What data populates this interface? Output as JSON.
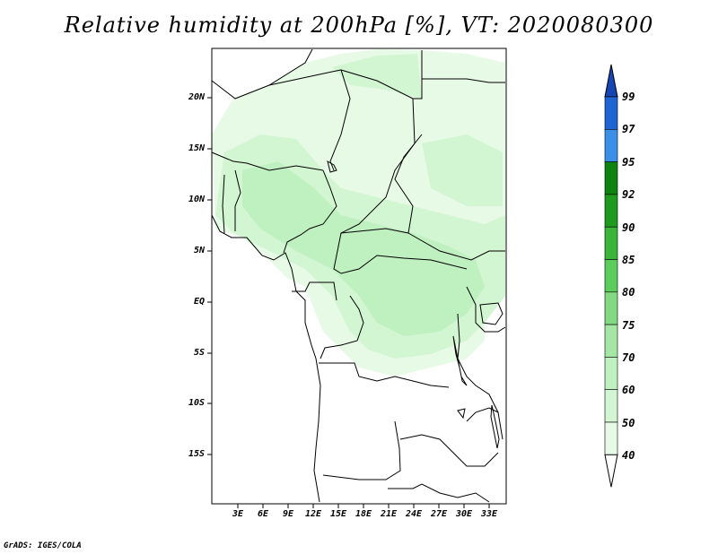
{
  "title": "Relative humidity at 200hPa [%], VT: 2020080300",
  "credit": "GrADS: IGES/COLA",
  "map": {
    "lat_labels": [
      "20N",
      "15N",
      "10N",
      "5N",
      "EQ",
      "5S",
      "10S",
      "15S"
    ],
    "lon_labels": [
      "3E",
      "6E",
      "9E",
      "12E",
      "15E",
      "18E",
      "21E",
      "24E",
      "27E",
      "30E",
      "33E"
    ]
  },
  "colorbar": {
    "levels": [
      "40",
      "50",
      "60",
      "70",
      "75",
      "80",
      "85",
      "90",
      "92",
      "95",
      "97",
      "99"
    ],
    "colors": [
      "#ffffff",
      "#e6fae6",
      "#d2f5d2",
      "#bff0bf",
      "#a5e6a5",
      "#82d982",
      "#5ccc5c",
      "#3ab53a",
      "#1e9a1e",
      "#0f830f",
      "#3c8fe6",
      "#1e64d2",
      "#1646b4"
    ]
  },
  "shading_colors": {
    "light": "#e6fae6",
    "mid": "#d2f5d2",
    "dark": "#bff0bf"
  }
}
